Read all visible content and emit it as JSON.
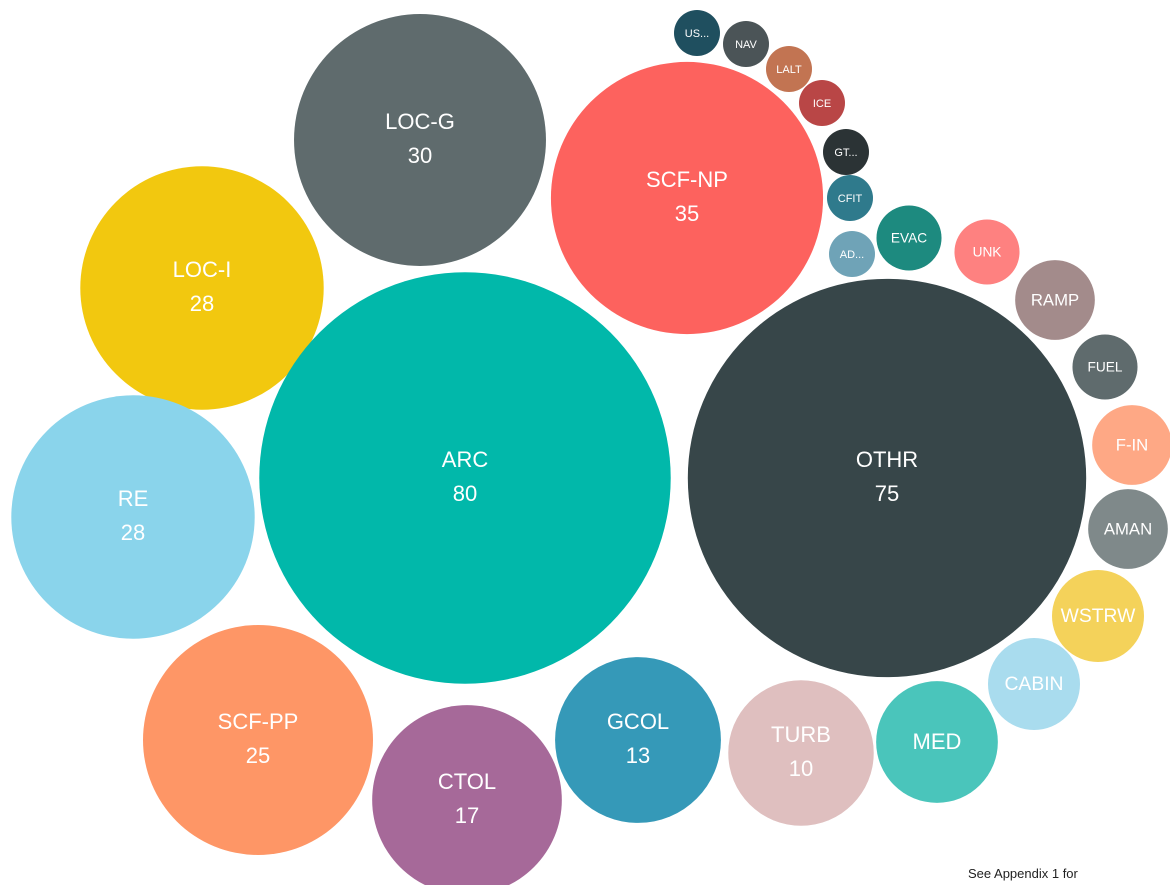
{
  "chart_data": {
    "type": "bubble",
    "categories": [
      "LOC-G",
      "SCF-NP",
      "LOC-I",
      "ARC",
      "OTHR",
      "RE",
      "SCF-PP",
      "CTOL",
      "GCOL",
      "TURB",
      "MED",
      "CABIN",
      "WSTRW",
      "AMAN",
      "F-IN",
      "FUEL",
      "RAMP",
      "UNK",
      "EVAC",
      "AD...",
      "CFIT",
      "GT...",
      "ICE",
      "LALT",
      "NAV",
      "US..."
    ],
    "values": [
      30,
      35,
      28,
      80,
      75,
      28,
      25,
      17,
      13,
      10,
      7,
      4,
      4,
      3,
      3,
      2,
      3,
      2,
      2,
      1,
      1,
      1,
      1,
      1,
      1,
      1
    ],
    "colors": [
      "#5f6b6d",
      "#fd625e",
      "#f2c80f",
      "#01b8aa",
      "#374649",
      "#8ad4eb",
      "#fe9666",
      "#a66999",
      "#3599b8",
      "#dfbfbf",
      "#4ac5bb",
      "#a9dcee",
      "#f4d25a",
      "#7f898a",
      "#fea885",
      "#5f6b6d",
      "#a38b8b",
      "#fe8180",
      "#1d8a7f",
      "#6fa3b7",
      "#2f7a8c",
      "#2b3335",
      "#b94646",
      "#c27452",
      "#4b5457",
      "#1f4f5f"
    ],
    "value_label_min": 10,
    "note": "See  Appendix 1 for"
  }
}
